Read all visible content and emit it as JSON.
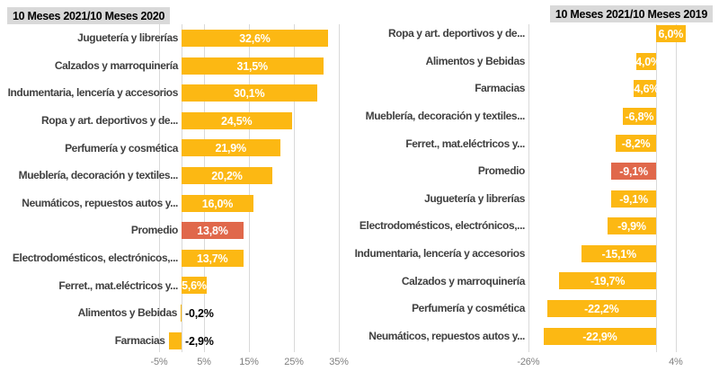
{
  "colors": {
    "bar": "#FCB813",
    "highlight": "#E0684B",
    "title_bg": "#D9D9D9",
    "title_text": "#000000",
    "category_text": "#404040",
    "value_text_inside": "#FFFFFF",
    "value_text_outside": "#000000",
    "tick_text": "#7F7F7F",
    "gridline": "#D9D9D9"
  },
  "chart_data": [
    {
      "type": "bar",
      "orientation": "horizontal",
      "title": "10 Meses 2021/10 Meses 2020",
      "highlight_category": "Promedio",
      "xlim": [
        -5,
        37
      ],
      "grid": true,
      "ticks": {
        "values": [
          -5,
          5,
          15,
          25,
          35
        ],
        "labels": [
          "-5%",
          "5%",
          "15%",
          "25%",
          "35%"
        ]
      },
      "categories": [
        "Juguetería y librerías",
        "Calzados y marroquinería",
        "Indumentaria, lencería y accesorios",
        "Ropa y art. deportivos y de...",
        "Perfumería y cosmética",
        "Mueblería, decoración y textiles...",
        "Neumáticos, repuestos autos y...",
        "Promedio",
        "Electrodomésticos, electrónicos,...",
        "Ferret., mat.eléctricos y...",
        "Alimentos y Bebidas",
        "Farmacias"
      ],
      "values": [
        32.6,
        31.5,
        30.1,
        24.5,
        21.9,
        20.2,
        16.0,
        13.8,
        13.7,
        5.6,
        -0.2,
        -2.9
      ],
      "value_labels": [
        "32,6%",
        "31,5%",
        "30,1%",
        "24,5%",
        "21,9%",
        "20,2%",
        "16,0%",
        "13,8%",
        "13,7%",
        "5,6%",
        "-0,2%",
        "-2,9%"
      ]
    },
    {
      "type": "bar",
      "orientation": "horizontal",
      "title": "10 Meses 2021/10 Meses 2019",
      "highlight_category": "Promedio",
      "xlim": [
        -26,
        4
      ],
      "grid": true,
      "ticks": {
        "values": [
          -26,
          4
        ],
        "labels": [
          "-26%",
          "4%"
        ]
      },
      "categories": [
        "Ropa y art. deportivos y de...",
        "Alimentos y Bebidas",
        "Farmacias",
        "Mueblería, decoración y textiles...",
        "Ferret., mat.eléctricos y...",
        "Promedio",
        "Juguetería y librerías",
        "Electrodomésticos, electrónicos,...",
        "Indumentaria, lencería y accesorios",
        "Calzados y marroquinería",
        "Perfumería y cosmética",
        "Neumáticos, repuestos autos y..."
      ],
      "values": [
        6.0,
        -4.0,
        -4.6,
        -6.8,
        -8.2,
        -9.1,
        -9.1,
        -9.9,
        -15.1,
        -19.7,
        -22.2,
        -22.9
      ],
      "value_labels": [
        "6,0%",
        "-4,0%",
        "-4,6%",
        "-6,8%",
        "-8,2%",
        "-9,1%",
        "-9,1%",
        "-9,9%",
        "-15,1%",
        "-19,7%",
        "-22,2%",
        "-22,9%"
      ]
    }
  ]
}
